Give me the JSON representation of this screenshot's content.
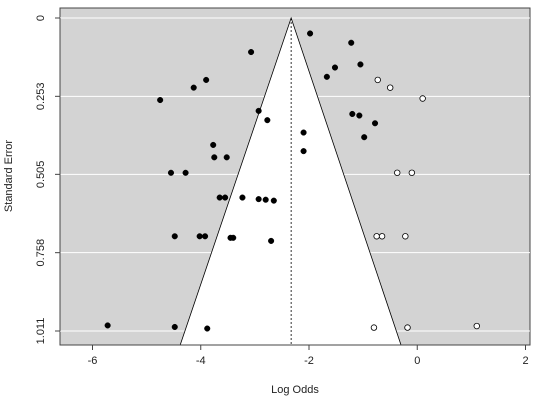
{
  "chart_data": {
    "type": "scatter",
    "subtype": "funnel-plot",
    "title": "",
    "xlabel": "Log Odds",
    "ylabel": "Standard Error",
    "xlim": [
      -6.5,
      2.0
    ],
    "ylim": [
      1.011,
      0
    ],
    "y_reversed": true,
    "x_ticks": [
      -6,
      -4,
      -2,
      0,
      2
    ],
    "x_tick_labels": [
      "-6",
      "-4",
      "-2",
      "0",
      "2"
    ],
    "y_ticks": [
      0,
      0.253,
      0.505,
      0.758,
      1.011
    ],
    "y_tick_labels": [
      "0",
      "0.253",
      "0.505",
      "0.758",
      "1.011"
    ],
    "background_color": "#d3d3d3",
    "funnel_fill": "#ffffff",
    "pooled_estimate": -2.33,
    "funnel_bottom": [
      -4.38,
      -0.3
    ],
    "grid": true,
    "series": [
      {
        "marker": "filled",
        "color": "#000000",
        "points": [
          {
            "x": -1.98,
            "y": 0.05
          },
          {
            "x": -1.22,
            "y": 0.08
          },
          {
            "x": -3.07,
            "y": 0.11
          },
          {
            "x": -1.05,
            "y": 0.15
          },
          {
            "x": -1.52,
            "y": 0.16
          },
          {
            "x": -1.67,
            "y": 0.19
          },
          {
            "x": -3.9,
            "y": 0.2
          },
          {
            "x": -4.13,
            "y": 0.225
          },
          {
            "x": -4.75,
            "y": 0.265
          },
          {
            "x": -2.93,
            "y": 0.3
          },
          {
            "x": -1.2,
            "y": 0.31
          },
          {
            "x": -1.07,
            "y": 0.315
          },
          {
            "x": -2.77,
            "y": 0.33
          },
          {
            "x": -0.78,
            "y": 0.34
          },
          {
            "x": -2.1,
            "y": 0.37
          },
          {
            "x": -0.98,
            "y": 0.385
          },
          {
            "x": -3.77,
            "y": 0.41
          },
          {
            "x": -2.1,
            "y": 0.43
          },
          {
            "x": -3.75,
            "y": 0.45
          },
          {
            "x": -3.52,
            "y": 0.45
          },
          {
            "x": -4.55,
            "y": 0.5
          },
          {
            "x": -4.28,
            "y": 0.5
          },
          {
            "x": -3.65,
            "y": 0.58
          },
          {
            "x": -3.55,
            "y": 0.58
          },
          {
            "x": -3.23,
            "y": 0.58
          },
          {
            "x": -2.93,
            "y": 0.585
          },
          {
            "x": -2.8,
            "y": 0.587
          },
          {
            "x": -2.65,
            "y": 0.59
          },
          {
            "x": -4.48,
            "y": 0.705
          },
          {
            "x": -4.02,
            "y": 0.705
          },
          {
            "x": -3.92,
            "y": 0.705
          },
          {
            "x": -3.45,
            "y": 0.71
          },
          {
            "x": -3.4,
            "y": 0.71
          },
          {
            "x": -2.7,
            "y": 0.72
          },
          {
            "x": -5.72,
            "y": 0.993
          },
          {
            "x": -4.48,
            "y": 0.998
          },
          {
            "x": -3.88,
            "y": 1.003
          }
        ]
      },
      {
        "marker": "open",
        "color": "#000000",
        "points": [
          {
            "x": -0.73,
            "y": 0.2
          },
          {
            "x": -0.5,
            "y": 0.225
          },
          {
            "x": 0.1,
            "y": 0.26
          },
          {
            "x": -0.37,
            "y": 0.5
          },
          {
            "x": -0.1,
            "y": 0.5
          },
          {
            "x": -0.75,
            "y": 0.705
          },
          {
            "x": -0.65,
            "y": 0.705
          },
          {
            "x": -0.22,
            "y": 0.705
          },
          {
            "x": -0.8,
            "y": 1.0
          },
          {
            "x": -0.18,
            "y": 1.0
          },
          {
            "x": 1.1,
            "y": 0.995
          }
        ]
      }
    ]
  }
}
